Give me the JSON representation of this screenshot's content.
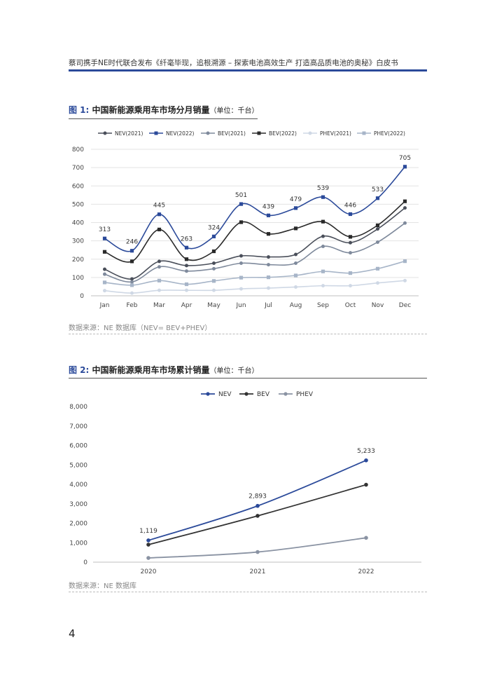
{
  "header": {
    "title": "蔡司携手NE时代联合发布《纤毫毕现，追根溯源 – 探索电池高效生产 打造高品质电池的奥秘》白皮书"
  },
  "figure1": {
    "number": "图 1:",
    "title": "中国新能源乘用车市场分月销量",
    "unit": "（单位：千台）",
    "source": "数据来源：NE 数据库（NEV= BEV+PHEV）"
  },
  "figure2": {
    "number": "图 2:",
    "title": "中国新能源乘用车市场累计销量",
    "unit": "（单位：千台）",
    "source": "数据来源：NE 数据库"
  },
  "page_number": "4",
  "chart_data": [
    {
      "type": "line",
      "categories": [
        "Jan",
        "Feb",
        "Mar",
        "Apr",
        "May",
        "Jun",
        "Jul",
        "Aug",
        "Sep",
        "Oct",
        "Nov",
        "Dec"
      ],
      "ylim": [
        0,
        800
      ],
      "yticks": [
        "0",
        "100",
        "200",
        "300",
        "400",
        "500",
        "600",
        "700",
        "800"
      ],
      "grid": true,
      "legend_position": "top",
      "series": [
        {
          "name": "NEV(2021)",
          "color": "#4a4f5a",
          "marker": "circle",
          "values": [
            145,
            92,
            188,
            165,
            178,
            218,
            212,
            226,
            325,
            290,
            365,
            480
          ]
        },
        {
          "name": "NEV(2022)",
          "color": "#2b4a9a",
          "marker": "square",
          "values": [
            313,
            246,
            445,
            263,
            324,
            501,
            439,
            479,
            539,
            446,
            533,
            705
          ],
          "labels": [
            "313",
            "246",
            "445",
            "263",
            "324",
            "501",
            "439",
            "479",
            "539",
            "446",
            "533",
            "705"
          ]
        },
        {
          "name": "BEV(2021)",
          "color": "#7f8a9c",
          "marker": "circle",
          "values": [
            118,
            76,
            158,
            135,
            148,
            178,
            170,
            178,
            270,
            235,
            293,
            397
          ]
        },
        {
          "name": "BEV(2022)",
          "color": "#2a2a2a",
          "marker": "square",
          "values": [
            240,
            188,
            362,
            200,
            243,
            402,
            338,
            368,
            405,
            322,
            385,
            516
          ]
        },
        {
          "name": "PHEV(2021)",
          "color": "#cfd8e5",
          "marker": "circle",
          "values": [
            28,
            15,
            30,
            30,
            30,
            38,
            42,
            48,
            55,
            55,
            70,
            83
          ]
        },
        {
          "name": "PHEV(2022)",
          "color": "#a7b5c8",
          "marker": "square",
          "values": [
            73,
            58,
            83,
            63,
            81,
            99,
            101,
            111,
            133,
            124,
            148,
            189
          ]
        }
      ]
    },
    {
      "type": "line",
      "categories": [
        "2020",
        "2021",
        "2022"
      ],
      "ylim": [
        0,
        8000
      ],
      "yticks": [
        "0",
        "1,000",
        "2,000",
        "3,000",
        "4,000",
        "5,000",
        "6,000",
        "7,000",
        "8,000"
      ],
      "grid": false,
      "legend_position": "top",
      "series": [
        {
          "name": "NEV",
          "color": "#2b4a9a",
          "values": [
            1119,
            2893,
            5233
          ],
          "labels": [
            "1,119",
            "2,893",
            "5,233"
          ]
        },
        {
          "name": "BEV",
          "color": "#333333",
          "values": [
            900,
            2380,
            3980
          ]
        },
        {
          "name": "PHEV",
          "color": "#8a93a3",
          "values": [
            215,
            520,
            1250
          ]
        }
      ]
    }
  ]
}
